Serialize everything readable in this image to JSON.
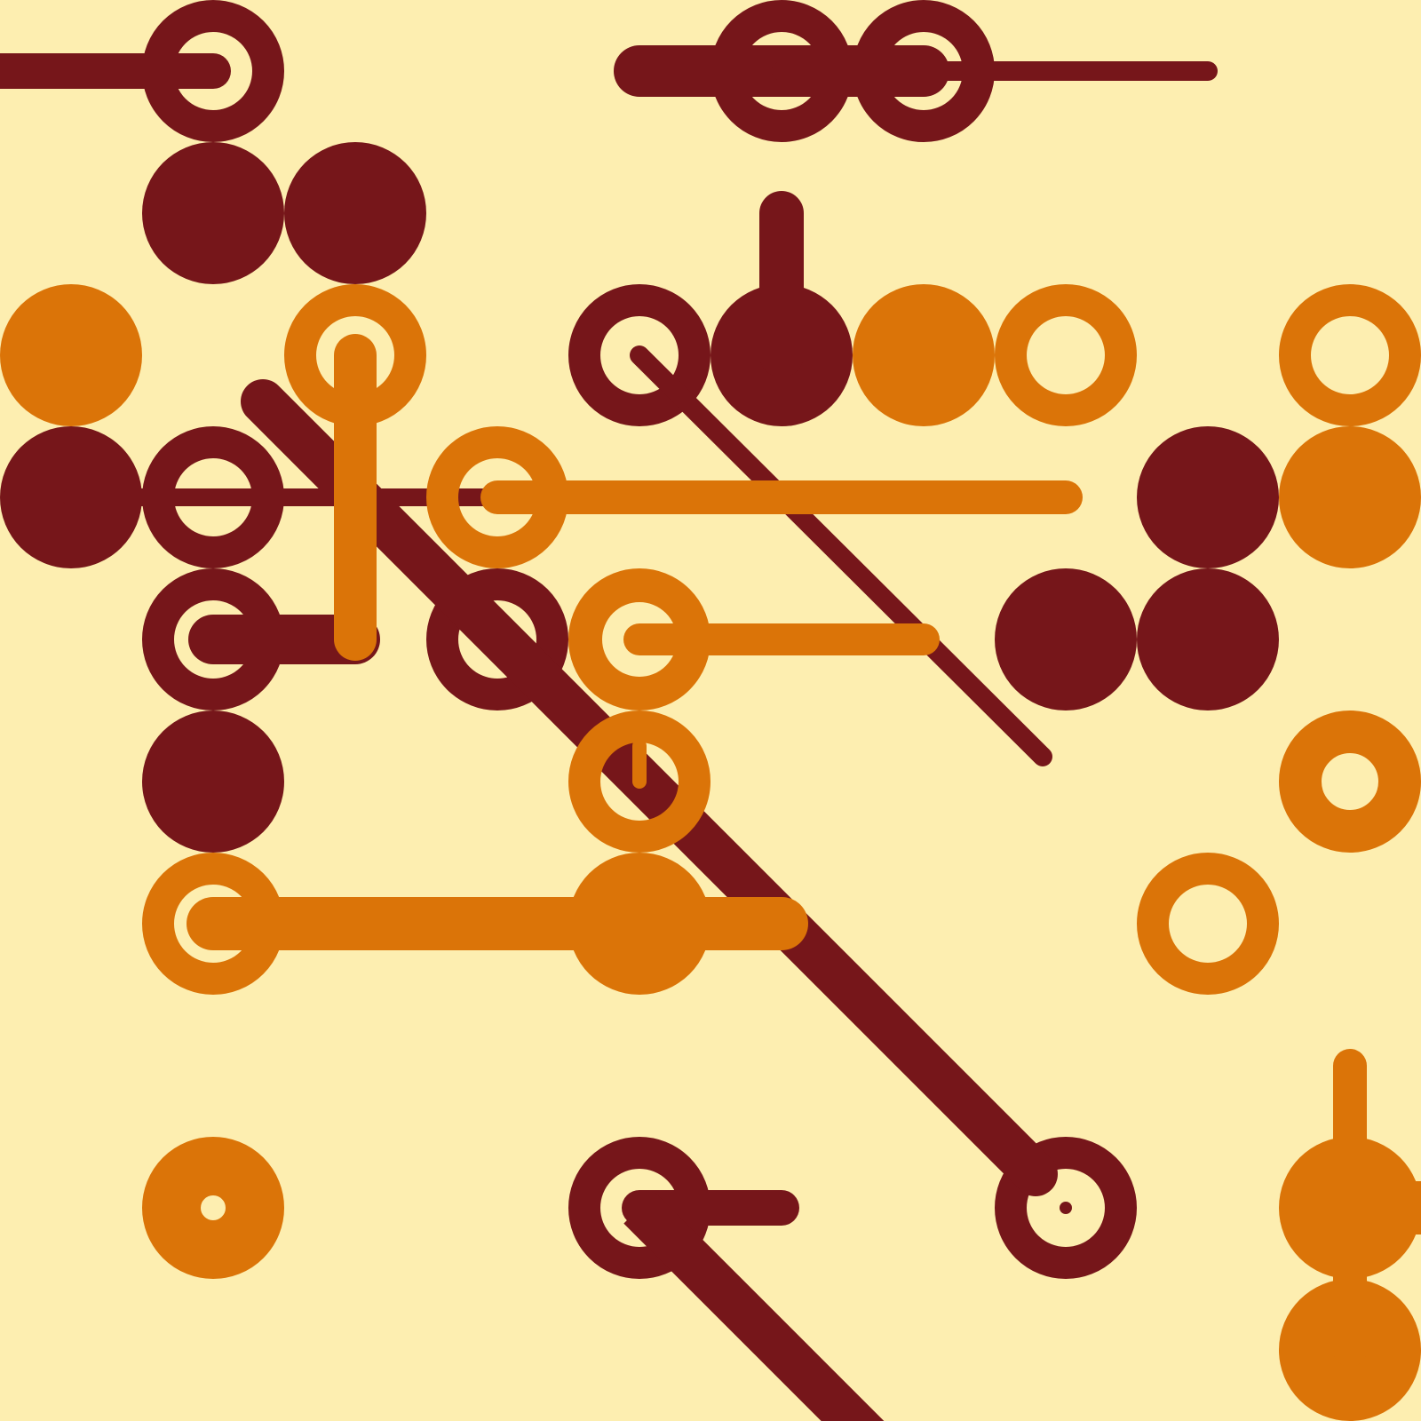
{
  "colors": {
    "background": "#FDEEB0",
    "maroon": "#76161A",
    "orange": "#DB7408"
  }
}
